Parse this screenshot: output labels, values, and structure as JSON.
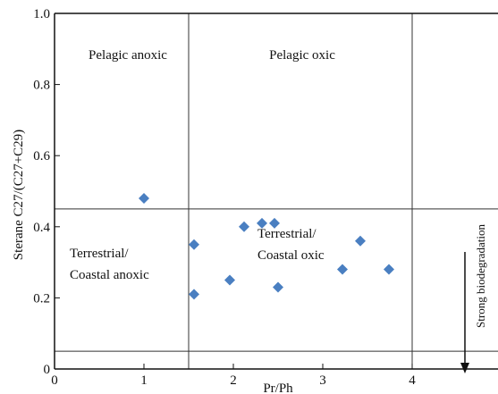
{
  "chart_data": {
    "type": "scatter",
    "xlabel": "Pr/Ph",
    "ylabel": "Sterane C27/(C27+C29)",
    "xlim": [
      0,
      5
    ],
    "ylim": [
      0,
      1.0
    ],
    "x_ticks": [
      0,
      1,
      2,
      3,
      4,
      5
    ],
    "y_ticks": [
      0,
      0.2,
      0.4,
      0.6,
      0.8,
      1.0
    ],
    "x_tick_labels": [
      "0",
      "1",
      "2",
      "3",
      "4",
      "5"
    ],
    "y_tick_labels": [
      "0",
      "0.2",
      "0.4",
      "0.6",
      "0.8",
      "1.0"
    ],
    "grid": false,
    "marker": "diamond",
    "marker_color": "#4a7fc1",
    "divider_lines": {
      "vertical_x": [
        1.5,
        4.0
      ],
      "horizontal_y": [
        0.45,
        0.05
      ]
    },
    "points": [
      {
        "x": 1.0,
        "y": 0.48
      },
      {
        "x": 1.56,
        "y": 0.35
      },
      {
        "x": 1.56,
        "y": 0.21
      },
      {
        "x": 1.96,
        "y": 0.25
      },
      {
        "x": 2.12,
        "y": 0.4
      },
      {
        "x": 2.32,
        "y": 0.41
      },
      {
        "x": 2.46,
        "y": 0.41
      },
      {
        "x": 2.5,
        "y": 0.23
      },
      {
        "x": 3.22,
        "y": 0.28
      },
      {
        "x": 3.42,
        "y": 0.36
      },
      {
        "x": 3.74,
        "y": 0.28
      }
    ],
    "annotations": {
      "pelagic_anoxic": "Pelagic anoxic",
      "pelagic_oxic": "Pelagic oxic",
      "terrestrial_anoxic": [
        "Terrestrial/",
        "Coastal anoxic"
      ],
      "terrestrial_oxic": [
        "Terrestrial/",
        "Coastal oxic"
      ],
      "biodegradation": "Strong biodegradation"
    }
  }
}
